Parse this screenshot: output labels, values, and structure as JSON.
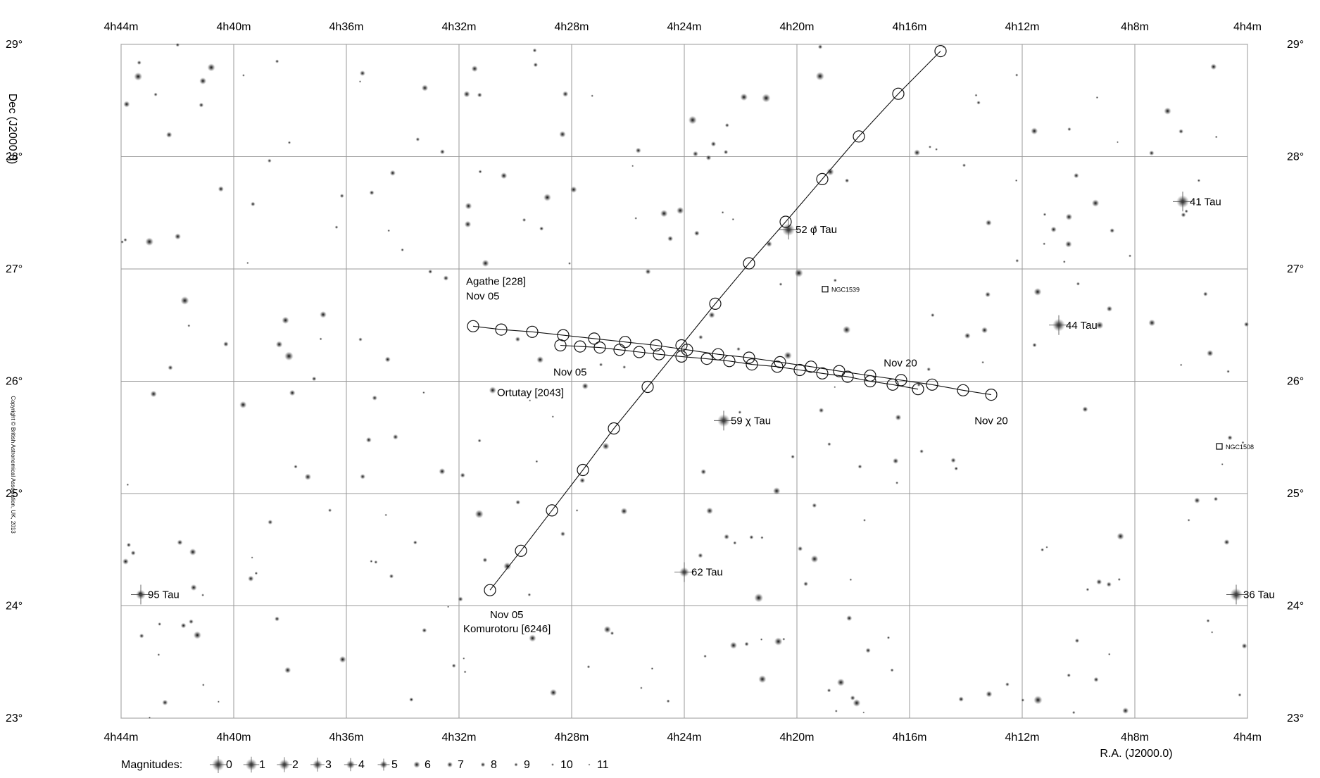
{
  "chart_data": {
    "type": "scatter",
    "subtype": "star-chart-minor-planet-tracks",
    "x_axis": {
      "label": "R.A. (J2000.0)",
      "unit": "RA minutes",
      "range_minutes": [
        284,
        244
      ],
      "ticks": [
        {
          "value": 284,
          "label": "4h44m"
        },
        {
          "value": 280,
          "label": "4h40m"
        },
        {
          "value": 276,
          "label": "4h36m"
        },
        {
          "value": 272,
          "label": "4h32m"
        },
        {
          "value": 268,
          "label": "4h28m"
        },
        {
          "value": 264,
          "label": "4h24m"
        },
        {
          "value": 260,
          "label": "4h20m"
        },
        {
          "value": 256,
          "label": "4h16m"
        },
        {
          "value": 252,
          "label": "4h12m"
        },
        {
          "value": 248,
          "label": "4h8m"
        },
        {
          "value": 244,
          "label": "4h4m"
        }
      ]
    },
    "y_axis": {
      "label": "Dec (J2000.0)",
      "unit": "degrees",
      "range": [
        23,
        29
      ],
      "ticks": [
        {
          "value": 29,
          "label": "29°"
        },
        {
          "value": 28,
          "label": "28°"
        },
        {
          "value": 27,
          "label": "27°"
        },
        {
          "value": 26,
          "label": "26°"
        },
        {
          "value": 25,
          "label": "25°"
        },
        {
          "value": 24,
          "label": "24°"
        },
        {
          "value": 23,
          "label": "23°"
        }
      ]
    },
    "grid": true,
    "tracks": [
      {
        "id": "agathe",
        "name": "Agathe [228]",
        "start_label": "Nov 05",
        "end_label": "Nov 20",
        "points": [
          [
            271.5,
            26.49
          ],
          [
            270.5,
            26.46
          ],
          [
            269.4,
            26.44
          ],
          [
            268.3,
            26.41
          ],
          [
            267.2,
            26.38
          ],
          [
            266.1,
            26.35
          ],
          [
            265.0,
            26.32
          ],
          [
            263.9,
            26.28
          ],
          [
            262.8,
            26.24
          ],
          [
            261.7,
            26.21
          ],
          [
            260.6,
            26.17
          ],
          [
            259.5,
            26.13
          ],
          [
            258.5,
            26.09
          ],
          [
            257.4,
            26.05
          ],
          [
            256.3,
            26.01
          ],
          [
            255.2,
            25.97
          ],
          [
            254.1,
            25.92
          ],
          [
            253.1,
            25.88
          ]
        ]
      },
      {
        "id": "ortutay",
        "name": "Ortutay [2043]",
        "start_label": "Nov 05",
        "end_label": "Nov 20",
        "points": [
          [
            268.4,
            26.32
          ],
          [
            267.7,
            26.31
          ],
          [
            267.0,
            26.3
          ],
          [
            266.3,
            26.28
          ],
          [
            265.6,
            26.26
          ],
          [
            264.9,
            26.24
          ],
          [
            264.1,
            26.22
          ],
          [
            263.2,
            26.2
          ],
          [
            262.4,
            26.18
          ],
          [
            261.6,
            26.15
          ],
          [
            260.7,
            26.13
          ],
          [
            259.9,
            26.1
          ],
          [
            259.1,
            26.07
          ],
          [
            258.2,
            26.04
          ],
          [
            257.4,
            26.0
          ],
          [
            256.6,
            25.97
          ],
          [
            255.7,
            25.93
          ]
        ]
      },
      {
        "id": "komurotoru",
        "name": "Komurotoru [6246]",
        "start_label": "Nov 05",
        "end_label": "",
        "points": [
          [
            270.9,
            24.14
          ],
          [
            269.8,
            24.49
          ],
          [
            268.7,
            24.85
          ],
          [
            267.6,
            25.21
          ],
          [
            266.5,
            25.58
          ],
          [
            265.3,
            25.95
          ],
          [
            264.1,
            26.32
          ],
          [
            262.9,
            26.69
          ],
          [
            261.7,
            27.05
          ],
          [
            260.4,
            27.42
          ],
          [
            259.1,
            27.8
          ],
          [
            257.8,
            28.18
          ],
          [
            256.4,
            28.56
          ],
          [
            254.9,
            28.94
          ]
        ]
      }
    ],
    "labeled_objects": [
      {
        "name": "52 φ Tau",
        "kind": "star",
        "ra_min": 260.3,
        "dec": 27.35,
        "mag": 5
      },
      {
        "name": "41 Tau",
        "kind": "star",
        "ra_min": 246.3,
        "dec": 27.6,
        "mag": 5
      },
      {
        "name": "44 Tau",
        "kind": "star",
        "ra_min": 250.7,
        "dec": 26.5,
        "mag": 5
      },
      {
        "name": "59 χ Tau",
        "kind": "star",
        "ra_min": 262.6,
        "dec": 25.65,
        "mag": 5
      },
      {
        "name": "62 Tau",
        "kind": "star",
        "ra_min": 264.0,
        "dec": 24.3,
        "mag": 6
      },
      {
        "name": "95 Tau",
        "kind": "star",
        "ra_min": 283.3,
        "dec": 24.1,
        "mag": 6
      },
      {
        "name": "36 Tau",
        "kind": "star",
        "ra_min": 244.4,
        "dec": 24.1,
        "mag": 5
      },
      {
        "name": "NGC1539",
        "kind": "nebula",
        "ra_min": 259.0,
        "dec": 26.82
      },
      {
        "name": "NGC1508",
        "kind": "nebula",
        "ra_min": 245.0,
        "dec": 25.42
      }
    ],
    "background_stars": {
      "count": 300,
      "mag_range": [
        6,
        11
      ],
      "seed": 7
    }
  },
  "legend": {
    "title": "Magnitudes:",
    "items": [
      "0",
      "1",
      "2",
      "3",
      "4",
      "5",
      "6",
      "7",
      "8",
      "9",
      "10",
      "11"
    ]
  },
  "copyright": "Copyright © British Astronomical Association, UK, 2013"
}
